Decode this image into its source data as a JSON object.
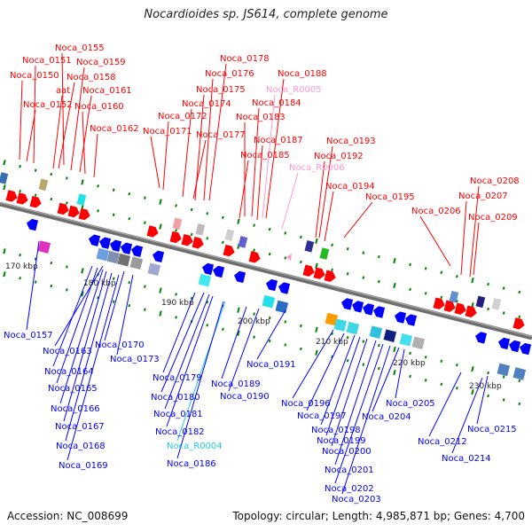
{
  "title": "Nocardioides sp. JS614, complete genome",
  "footer": {
    "accession": "Accession: NC_008699",
    "summary": "Topology: circular; Length: 4,985,871 bp; Genes: 4,700"
  },
  "colors": {
    "forward": "#ff0000",
    "reverse": "#0000ff",
    "rna": "#ff99cc",
    "trna": "#22c8e0",
    "backbone": "#808080",
    "tick": "#008000"
  },
  "scale_labels": [
    "170 kbp",
    "180 kbp",
    "190 kbp",
    "200 kbp",
    "210 kbp",
    "220 kbp",
    "230 kbp"
  ],
  "top_labels": [
    {
      "text": "Noca_0155",
      "kind": "forward"
    },
    {
      "text": "Noca_0151",
      "kind": "forward"
    },
    {
      "text": "Noca_0159",
      "kind": "forward"
    },
    {
      "text": "Noca_0150",
      "kind": "forward"
    },
    {
      "text": "Noca_0158",
      "kind": "forward"
    },
    {
      "text": "aat",
      "kind": "forward"
    },
    {
      "text": "Noca_0161",
      "kind": "forward"
    },
    {
      "text": "Noca_0152",
      "kind": "forward"
    },
    {
      "text": "Noca_0160",
      "kind": "forward"
    },
    {
      "text": "Noca_0162",
      "kind": "forward"
    },
    {
      "text": "Noca_0178",
      "kind": "forward"
    },
    {
      "text": "Noca_0176",
      "kind": "forward"
    },
    {
      "text": "Noca_0188",
      "kind": "forward"
    },
    {
      "text": "Noca_0175",
      "kind": "forward"
    },
    {
      "text": "Noca_R0005",
      "kind": "rna"
    },
    {
      "text": "Noca_0174",
      "kind": "forward"
    },
    {
      "text": "Noca_0184",
      "kind": "forward"
    },
    {
      "text": "Noca_0172",
      "kind": "forward"
    },
    {
      "text": "Noca_0183",
      "kind": "forward"
    },
    {
      "text": "Noca_0171",
      "kind": "forward"
    },
    {
      "text": "Noca_0177",
      "kind": "forward"
    },
    {
      "text": "Noca_0187",
      "kind": "forward"
    },
    {
      "text": "Noca_0193",
      "kind": "forward"
    },
    {
      "text": "Noca_0185",
      "kind": "forward"
    },
    {
      "text": "Noca_0192",
      "kind": "forward"
    },
    {
      "text": "Noca_R0006",
      "kind": "rna"
    },
    {
      "text": "Noca_0208",
      "kind": "forward"
    },
    {
      "text": "Noca_0194",
      "kind": "forward"
    },
    {
      "text": "Noca_0207",
      "kind": "forward"
    },
    {
      "text": "Noca_0195",
      "kind": "forward"
    },
    {
      "text": "Noca_0206",
      "kind": "forward"
    },
    {
      "text": "Noca_0209",
      "kind": "forward"
    }
  ],
  "bottom_labels": [
    {
      "text": "Noca_0157",
      "kind": "reverse"
    },
    {
      "text": "Noca_0163",
      "kind": "reverse"
    },
    {
      "text": "Noca_0170",
      "kind": "reverse"
    },
    {
      "text": "Noca_0173",
      "kind": "reverse"
    },
    {
      "text": "Noca_0164",
      "kind": "reverse"
    },
    {
      "text": "Noca_0165",
      "kind": "reverse"
    },
    {
      "text": "Noca_0166",
      "kind": "reverse"
    },
    {
      "text": "Noca_0167",
      "kind": "reverse"
    },
    {
      "text": "Noca_0168",
      "kind": "reverse"
    },
    {
      "text": "Noca_0169",
      "kind": "reverse"
    },
    {
      "text": "Noca_0179",
      "kind": "reverse"
    },
    {
      "text": "Noca_0180",
      "kind": "reverse"
    },
    {
      "text": "Noca_0181",
      "kind": "reverse"
    },
    {
      "text": "Noca_0182",
      "kind": "reverse"
    },
    {
      "text": "Noca_R0004",
      "kind": "trna"
    },
    {
      "text": "Noca_0186",
      "kind": "reverse"
    },
    {
      "text": "Noca_0189",
      "kind": "reverse"
    },
    {
      "text": "Noca_0190",
      "kind": "reverse"
    },
    {
      "text": "Noca_0191",
      "kind": "reverse"
    },
    {
      "text": "Noca_0196",
      "kind": "reverse"
    },
    {
      "text": "Noca_0197",
      "kind": "reverse"
    },
    {
      "text": "Noca_0198",
      "kind": "reverse"
    },
    {
      "text": "Noca_0199",
      "kind": "reverse"
    },
    {
      "text": "Noca_0200",
      "kind": "reverse"
    },
    {
      "text": "Noca_0201",
      "kind": "reverse"
    },
    {
      "text": "Noca_0202",
      "kind": "reverse"
    },
    {
      "text": "Noca_0203",
      "kind": "reverse"
    },
    {
      "text": "Noca_0204",
      "kind": "reverse"
    },
    {
      "text": "Noca_0205",
      "kind": "reverse"
    },
    {
      "text": "Noca_0212",
      "kind": "reverse"
    },
    {
      "text": "Noca_0215",
      "kind": "reverse"
    },
    {
      "text": "Noca_0214",
      "kind": "reverse"
    }
  ]
}
